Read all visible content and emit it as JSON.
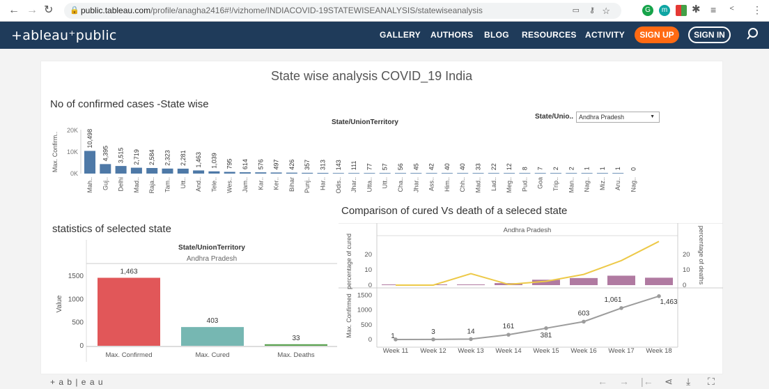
{
  "browser": {
    "url_domain": "public.tableau.com",
    "url_path": "/profile/anagha2416#!/vizhome/INDIACOVID-19STATEWISEANALYSIS/statewiseanalysis"
  },
  "site": {
    "logo": "+ableau⁺public",
    "nav": [
      "GALLERY",
      "AUTHORS",
      "BLOG",
      "RESOURCES",
      "ACTIVITY"
    ],
    "signup": "SIGN UP",
    "signin": "SIGN IN"
  },
  "dashboard": {
    "title": "State wise analysis COVID_19 India",
    "filter_label": "State/Unio..",
    "filter_value": "Andhra Pradesh",
    "footer_logo": "+ a b | e a u"
  },
  "colors": {
    "bar_blue": "#4e79a7",
    "red": "#e15759",
    "teal": "#76b7b2",
    "green": "#59a14f",
    "yellow": "#edc948",
    "purple": "#b07aa1",
    "grey": "#9c9c9c"
  },
  "chart_data": [
    {
      "type": "bar",
      "title": "No of confirmed cases -State wise",
      "header": "State/UnionTerritory",
      "ylabel": "Max. Confirm..",
      "ylim": [
        0,
        20000
      ],
      "yticks": [
        "0K",
        "10K",
        "20K"
      ],
      "categories": [
        "Mah..",
        "Guj..",
        "Delhi",
        "Mad..",
        "Raja..",
        "Tam..",
        "Utt..",
        "And..",
        "Tele..",
        "Wes..",
        "Jam..",
        "Kar..",
        "Ker..",
        "Bihar",
        "Punj..",
        "Har..",
        "Odis..",
        "Jhar..",
        "Utta..",
        "Utt..",
        "Cha..",
        "Jhar..",
        "Ass..",
        "Him..",
        "Chh..",
        "Mad..",
        "Lad..",
        "Meg..",
        "Pud..",
        "Goa",
        "Trip..",
        "Man..",
        "Nag..",
        "Miz..",
        "Aru..",
        "Nag.."
      ],
      "values": [
        10498,
        4395,
        3515,
        2719,
        2584,
        2323,
        2281,
        1463,
        1039,
        795,
        614,
        576,
        497,
        426,
        357,
        313,
        143,
        111,
        77,
        57,
        56,
        45,
        42,
        40,
        40,
        33,
        22,
        12,
        8,
        7,
        2,
        2,
        1,
        1,
        1,
        0
      ],
      "labels": [
        "10,498",
        "4,395",
        "3,515",
        "2,719",
        "2,584",
        "2,323",
        "2,281",
        "1,463",
        "1,039",
        "795",
        "614",
        "576",
        "497",
        "426",
        "357",
        "313",
        "143",
        "111",
        "77",
        "57",
        "56",
        "45",
        "42",
        "40",
        "40",
        "33",
        "22",
        "12",
        "8",
        "7",
        "2",
        "2",
        "1",
        "1",
        "1",
        "0"
      ]
    },
    {
      "type": "bar",
      "title": "statistics of selected state",
      "header": "State/UnionTerritory",
      "subheader": "Andhra Pradesh",
      "ylabel": "Value",
      "ylim": [
        0,
        1500
      ],
      "yticks": [
        "0",
        "500",
        "1000",
        "1500"
      ],
      "categories": [
        "Max. Confirmed",
        "Max. Cured",
        "Max. Deaths"
      ],
      "values": [
        1463,
        403,
        33
      ],
      "labels": [
        "1,463",
        "403",
        "33"
      ]
    },
    {
      "type": "line",
      "title": "Comparison of cured Vs death of a seleced state",
      "header": "Andhra Pradesh",
      "x": [
        "Week 11",
        "Week 12",
        "Week 13",
        "Week 14",
        "Week 15",
        "Week 16",
        "Week 17",
        "Week 18"
      ],
      "top_left_label": "percentage of cured",
      "top_right_label": "percentage of deaths",
      "top_ylim": [
        0,
        30
      ],
      "top_yticks": [
        "0",
        "10",
        "20"
      ],
      "series": [
        {
          "name": "percentage of cured",
          "values": [
            0,
            0,
            7.5,
            0.5,
            2.5,
            7,
            16,
            28.5
          ]
        },
        {
          "name": "percentage of deaths",
          "values": [
            0,
            0,
            0,
            0.6,
            1.6,
            2.1,
            2.8,
            2.2
          ]
        }
      ],
      "bottom_ylabel": "Max. Confirmed",
      "bottom_ylim": [
        0,
        1600
      ],
      "bottom_yticks": [
        "0",
        "500",
        "1000",
        "1500"
      ],
      "confirmed": [
        1,
        3,
        14,
        161,
        381,
        603,
        1061,
        1463
      ],
      "confirmed_labels": [
        "1",
        "3",
        "14",
        "161",
        "381",
        "603",
        "1,061",
        "1,463"
      ]
    }
  ]
}
